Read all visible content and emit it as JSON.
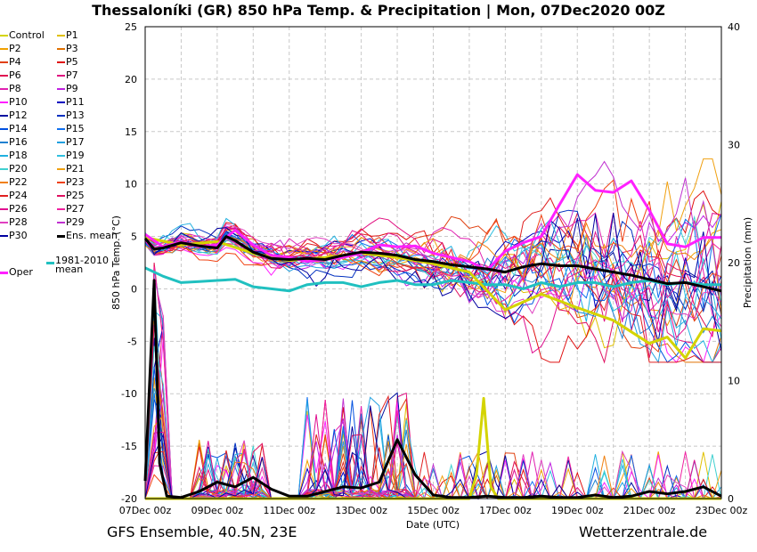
{
  "header": {
    "title": "Thessaloníki  (GR)  850 hPa Temp. & Precipitation | Mon, 07Dec2020 00Z"
  },
  "footer": {
    "left": "GFS Ensemble, 40.5N, 23E",
    "right": "Wetterzentrale.de"
  },
  "legend": {
    "items": [
      {
        "label": "Control",
        "color": "#d4d400"
      },
      {
        "label": "P1",
        "color": "#e0c000"
      },
      {
        "label": "P2",
        "color": "#f0a000"
      },
      {
        "label": "P3",
        "color": "#e07000"
      },
      {
        "label": "P4",
        "color": "#e04010"
      },
      {
        "label": "P5",
        "color": "#e01010"
      },
      {
        "label": "P6",
        "color": "#e01050"
      },
      {
        "label": "P7",
        "color": "#e01080"
      },
      {
        "label": "P8",
        "color": "#e020b0"
      },
      {
        "label": "P9",
        "color": "#c020e0"
      },
      {
        "label": "P10",
        "color": "#ff20ff"
      },
      {
        "label": "P11",
        "color": "#0000c0"
      },
      {
        "label": "P12",
        "color": "#0010a0"
      },
      {
        "label": "P13",
        "color": "#0030c0"
      },
      {
        "label": "P14",
        "color": "#0050e0"
      },
      {
        "label": "P15",
        "color": "#1070f0"
      },
      {
        "label": "P16",
        "color": "#2080d0"
      },
      {
        "label": "P17",
        "color": "#20a0e0"
      },
      {
        "label": "P18",
        "color": "#20b0e0"
      },
      {
        "label": "P19",
        "color": "#30c0e0"
      },
      {
        "label": "P20",
        "color": "#40d0d0"
      },
      {
        "label": "P21",
        "color": "#f0a010"
      },
      {
        "label": "P22",
        "color": "#f08010"
      },
      {
        "label": "P23",
        "color": "#f04010"
      },
      {
        "label": "P24",
        "color": "#e02020"
      },
      {
        "label": "P25",
        "color": "#e01060"
      },
      {
        "label": "P26",
        "color": "#e01090"
      },
      {
        "label": "P27",
        "color": "#f020a0"
      },
      {
        "label": "P28",
        "color": "#e040c0"
      },
      {
        "label": "P29",
        "color": "#c030d0"
      },
      {
        "label": "P30",
        "color": "#0000a0"
      },
      {
        "label": "Ens. mean",
        "color": "#000000"
      },
      {
        "label": "1981-2010 mean",
        "color": "#20c0c0"
      },
      {
        "label": "Oper",
        "color": "#ff20ff"
      }
    ]
  },
  "chart_data": {
    "type": "line",
    "xlabel": "Date (UTC)",
    "ylabel": "850 hPa Temp. (°C)",
    "y2label": "Precipitation (mm)",
    "x_ticks": [
      "07Dec 00z",
      "09Dec 00z",
      "11Dec 00z",
      "13Dec 00z",
      "15Dec 00z",
      "17Dec 00z",
      "19Dec 00z",
      "21Dec 00z",
      "23Dec 00z"
    ],
    "x_range_days": [
      0,
      16
    ],
    "ylim": [
      -20,
      25
    ],
    "y_ticks": [
      25,
      20,
      15,
      10,
      5,
      0,
      -5,
      -10,
      -15,
      -20
    ],
    "y2lim": [
      0,
      40
    ],
    "y2_ticks": [
      40,
      30,
      20,
      10,
      0
    ],
    "grid": true,
    "series_temp": [
      {
        "name": "Ens. mean",
        "color": "#000000",
        "width": 3,
        "x": [
          0,
          0.25,
          0.5,
          1,
          1.5,
          2,
          2.25,
          2.5,
          3,
          3.5,
          4,
          4.5,
          5,
          5.5,
          6,
          6.5,
          7,
          7.5,
          8,
          8.5,
          9,
          9.5,
          10,
          10.5,
          11,
          11.5,
          12,
          12.5,
          13,
          13.5,
          14,
          14.5,
          15,
          15.5,
          16
        ],
        "y": [
          4.8,
          3.8,
          3.9,
          4.4,
          4.1,
          3.9,
          5.0,
          4.6,
          3.5,
          2.9,
          2.8,
          2.9,
          2.8,
          3.2,
          3.5,
          3.4,
          3.2,
          2.8,
          2.6,
          2.3,
          2.1,
          1.9,
          1.6,
          2.1,
          2.4,
          2.2,
          2.2,
          1.9,
          1.6,
          1.3,
          0.9,
          0.5,
          0.6,
          0.2,
          -0.2
        ]
      },
      {
        "name": "Oper",
        "color": "#ff20ff",
        "width": 3,
        "x": [
          0,
          0.5,
          1,
          1.5,
          2,
          2.5,
          3,
          3.5,
          4,
          4.5,
          5,
          5.5,
          6,
          6.5,
          7,
          7.5,
          8,
          8.5,
          9,
          9.5,
          10,
          10.5,
          11,
          11.5,
          12,
          12.5,
          13,
          13.5,
          14,
          14.5,
          15,
          15.5,
          16
        ],
        "y": [
          5.2,
          4.0,
          4.5,
          4.0,
          4.2,
          5.6,
          4.2,
          3.2,
          3.0,
          2.6,
          2.8,
          3.0,
          3.4,
          4.2,
          4.0,
          4.1,
          3.4,
          3.0,
          2.6,
          1.8,
          3.6,
          4.4,
          5.0,
          8.0,
          10.9,
          9.4,
          9.2,
          10.3,
          7.5,
          4.3,
          4.0,
          4.9,
          4.9
        ]
      },
      {
        "name": "Control",
        "color": "#d4d400",
        "width": 3,
        "x": [
          0,
          1,
          2,
          3,
          4,
          5,
          6,
          7,
          8,
          9,
          10,
          11,
          12,
          13,
          14,
          14.5,
          15,
          15.5,
          16
        ],
        "y": [
          4.9,
          4.2,
          4.5,
          3.4,
          2.7,
          3.0,
          3.4,
          3.0,
          2.4,
          1.6,
          -2.0,
          -0.5,
          -1.8,
          -3.0,
          -5.2,
          -4.6,
          -6.6,
          -3.8,
          -4.0
        ]
      },
      {
        "name": "1981-2010 mean",
        "color": "#20c0c0",
        "width": 3,
        "x": [
          0,
          0.5,
          1,
          1.5,
          2,
          2.5,
          3,
          3.5,
          4,
          4.5,
          5,
          5.5,
          6,
          6.5,
          7,
          7.5,
          8,
          8.5,
          9,
          9.5,
          10,
          10.5,
          11,
          11.5,
          12,
          12.5,
          13,
          13.5,
          14,
          14.5,
          15,
          15.5,
          16
        ],
        "y": [
          2.0,
          1.2,
          0.6,
          0.7,
          0.8,
          0.9,
          0.2,
          0.0,
          -0.2,
          0.4,
          0.6,
          0.6,
          0.2,
          0.6,
          0.8,
          0.4,
          0.4,
          0.8,
          0.6,
          0.4,
          0.4,
          0.0,
          0.6,
          0.2,
          0.6,
          0.6,
          0.2,
          0.6,
          0.8,
          0.4,
          0.6,
          0.4,
          0.4
        ]
      }
    ],
    "series_precip": [
      {
        "name": "Ens. mean",
        "color": "#000000",
        "width": 3,
        "x": [
          0,
          0.25,
          0.4,
          0.6,
          1,
          1.5,
          2,
          2.5,
          3,
          3.5,
          4,
          4.5,
          5,
          5.5,
          6,
          6.5,
          7,
          7.5,
          8,
          8.5,
          9,
          9.5,
          10,
          10.5,
          11,
          11.5,
          12,
          12.5,
          13,
          13.5,
          14,
          14.5,
          15,
          15.5,
          16
        ],
        "y": [
          1.5,
          18.5,
          3.0,
          0.2,
          0.1,
          0.6,
          1.4,
          1.0,
          1.8,
          0.8,
          0.2,
          0.2,
          0.6,
          1.0,
          0.9,
          1.4,
          5.0,
          2.0,
          0.3,
          0.1,
          0.1,
          0.2,
          0.1,
          0.1,
          0.2,
          0.1,
          0.1,
          0.3,
          0.1,
          0.2,
          0.6,
          0.4,
          0.6,
          1.0,
          0.2
        ]
      },
      {
        "name": "Control",
        "color": "#d4d400",
        "width": 3,
        "x": [
          0,
          0.5,
          1,
          4,
          7,
          8,
          9,
          9.2,
          9.4,
          9.6,
          9.8,
          10,
          12,
          16
        ],
        "y": [
          0,
          0,
          0,
          0,
          0,
          0,
          0,
          2.0,
          8.5,
          1.0,
          0,
          0,
          0,
          0
        ]
      }
    ]
  }
}
